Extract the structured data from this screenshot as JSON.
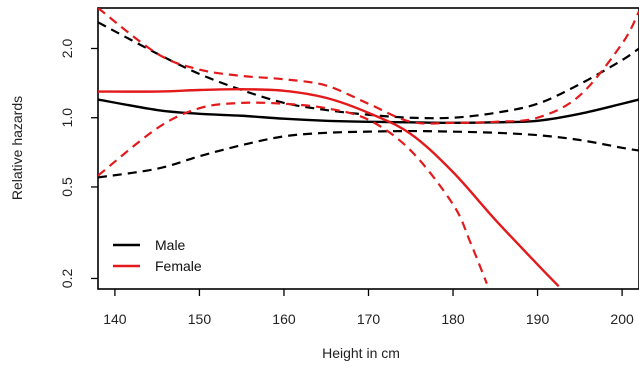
{
  "chart_data": {
    "type": "line",
    "title": "",
    "xlabel": "Height in cm",
    "ylabel": "Relative hazards",
    "xlim": [
      138,
      202
    ],
    "ylim": [
      0.18,
      3.0
    ],
    "y_scale": "log",
    "x_ticks": [
      140,
      150,
      160,
      170,
      180,
      190,
      200
    ],
    "y_ticks": [
      0.2,
      0.5,
      1.0,
      2.0
    ],
    "y_tick_labels": [
      "0.2",
      "0.5",
      "1.0",
      "2.0"
    ],
    "grid": false,
    "legend": {
      "position": "bottom-left",
      "entries": [
        "Male",
        "Female"
      ]
    },
    "series": [
      {
        "name": "Male",
        "color": "#000000",
        "estimate": {
          "x": [
            138,
            145,
            150,
            155,
            160,
            165,
            170,
            175,
            180,
            185,
            190,
            195,
            200,
            202
          ],
          "y": [
            1.2,
            1.08,
            1.04,
            1.02,
            0.99,
            0.97,
            0.96,
            0.955,
            0.95,
            0.955,
            0.97,
            1.04,
            1.15,
            1.2
          ]
        },
        "lower": {
          "x": [
            138,
            145,
            150,
            155,
            160,
            165,
            170,
            175,
            180,
            185,
            190,
            195,
            200,
            202
          ],
          "y": [
            0.55,
            0.6,
            0.68,
            0.76,
            0.83,
            0.86,
            0.87,
            0.875,
            0.87,
            0.86,
            0.84,
            0.8,
            0.74,
            0.72
          ]
        },
        "upper": {
          "x": [
            138,
            145,
            150,
            155,
            160,
            165,
            170,
            175,
            180,
            185,
            190,
            195,
            200,
            202
          ],
          "y": [
            2.6,
            1.9,
            1.55,
            1.32,
            1.16,
            1.08,
            1.03,
            1.0,
            1.0,
            1.05,
            1.15,
            1.4,
            1.78,
            2.0
          ]
        }
      },
      {
        "name": "Female",
        "color": "#e31a1c",
        "estimate": {
          "x": [
            138,
            145,
            150,
            155,
            160,
            165,
            170,
            175,
            180,
            185,
            190,
            192.5
          ],
          "y": [
            1.3,
            1.3,
            1.32,
            1.33,
            1.31,
            1.22,
            1.05,
            0.85,
            0.58,
            0.36,
            0.23,
            0.185
          ]
        },
        "lower": {
          "x": [
            138,
            145,
            150,
            155,
            160,
            165,
            170,
            175,
            180,
            182,
            184
          ],
          "y": [
            0.56,
            0.9,
            1.1,
            1.16,
            1.15,
            1.1,
            0.98,
            0.72,
            0.42,
            0.29,
            0.19
          ]
        },
        "upper": {
          "x": [
            138,
            145,
            150,
            155,
            160,
            165,
            170,
            175,
            180,
            185,
            190,
            195,
            200,
            202
          ],
          "y": [
            3.0,
            1.9,
            1.62,
            1.52,
            1.47,
            1.38,
            1.15,
            0.96,
            0.95,
            0.96,
            1.0,
            1.25,
            2.1,
            2.9
          ]
        }
      }
    ]
  }
}
